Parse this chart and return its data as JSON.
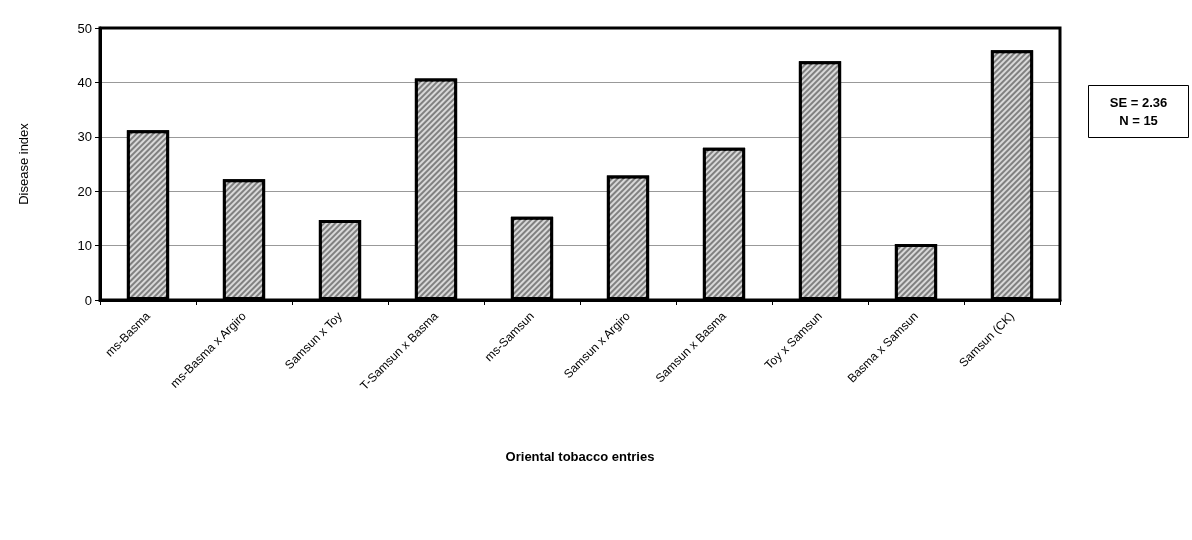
{
  "chart_data": {
    "type": "bar",
    "xlabel": "Oriental tobacco entries",
    "ylabel": "Disease index",
    "categories": [
      "ms-Basma",
      "ms-Basma x Argiro",
      "Samsun x Toy",
      "T-Samsun x Basma",
      "ms-Samsun",
      "Samsun x Argiro",
      "Samsun x Basma",
      "Toy x Samsun",
      "Basma x Samsun",
      "Samsun (CK)"
    ],
    "values": [
      31.2,
      22.2,
      14.7,
      40.7,
      15.3,
      22.9,
      28.0,
      43.9,
      10.3,
      45.9
    ],
    "color": "#808080",
    "ylim": [
      0,
      50
    ],
    "yticks": [
      0,
      10,
      20,
      30,
      40,
      50
    ],
    "grid": "y",
    "annotations": [
      "SE = 2.36",
      "N = 15"
    ]
  }
}
